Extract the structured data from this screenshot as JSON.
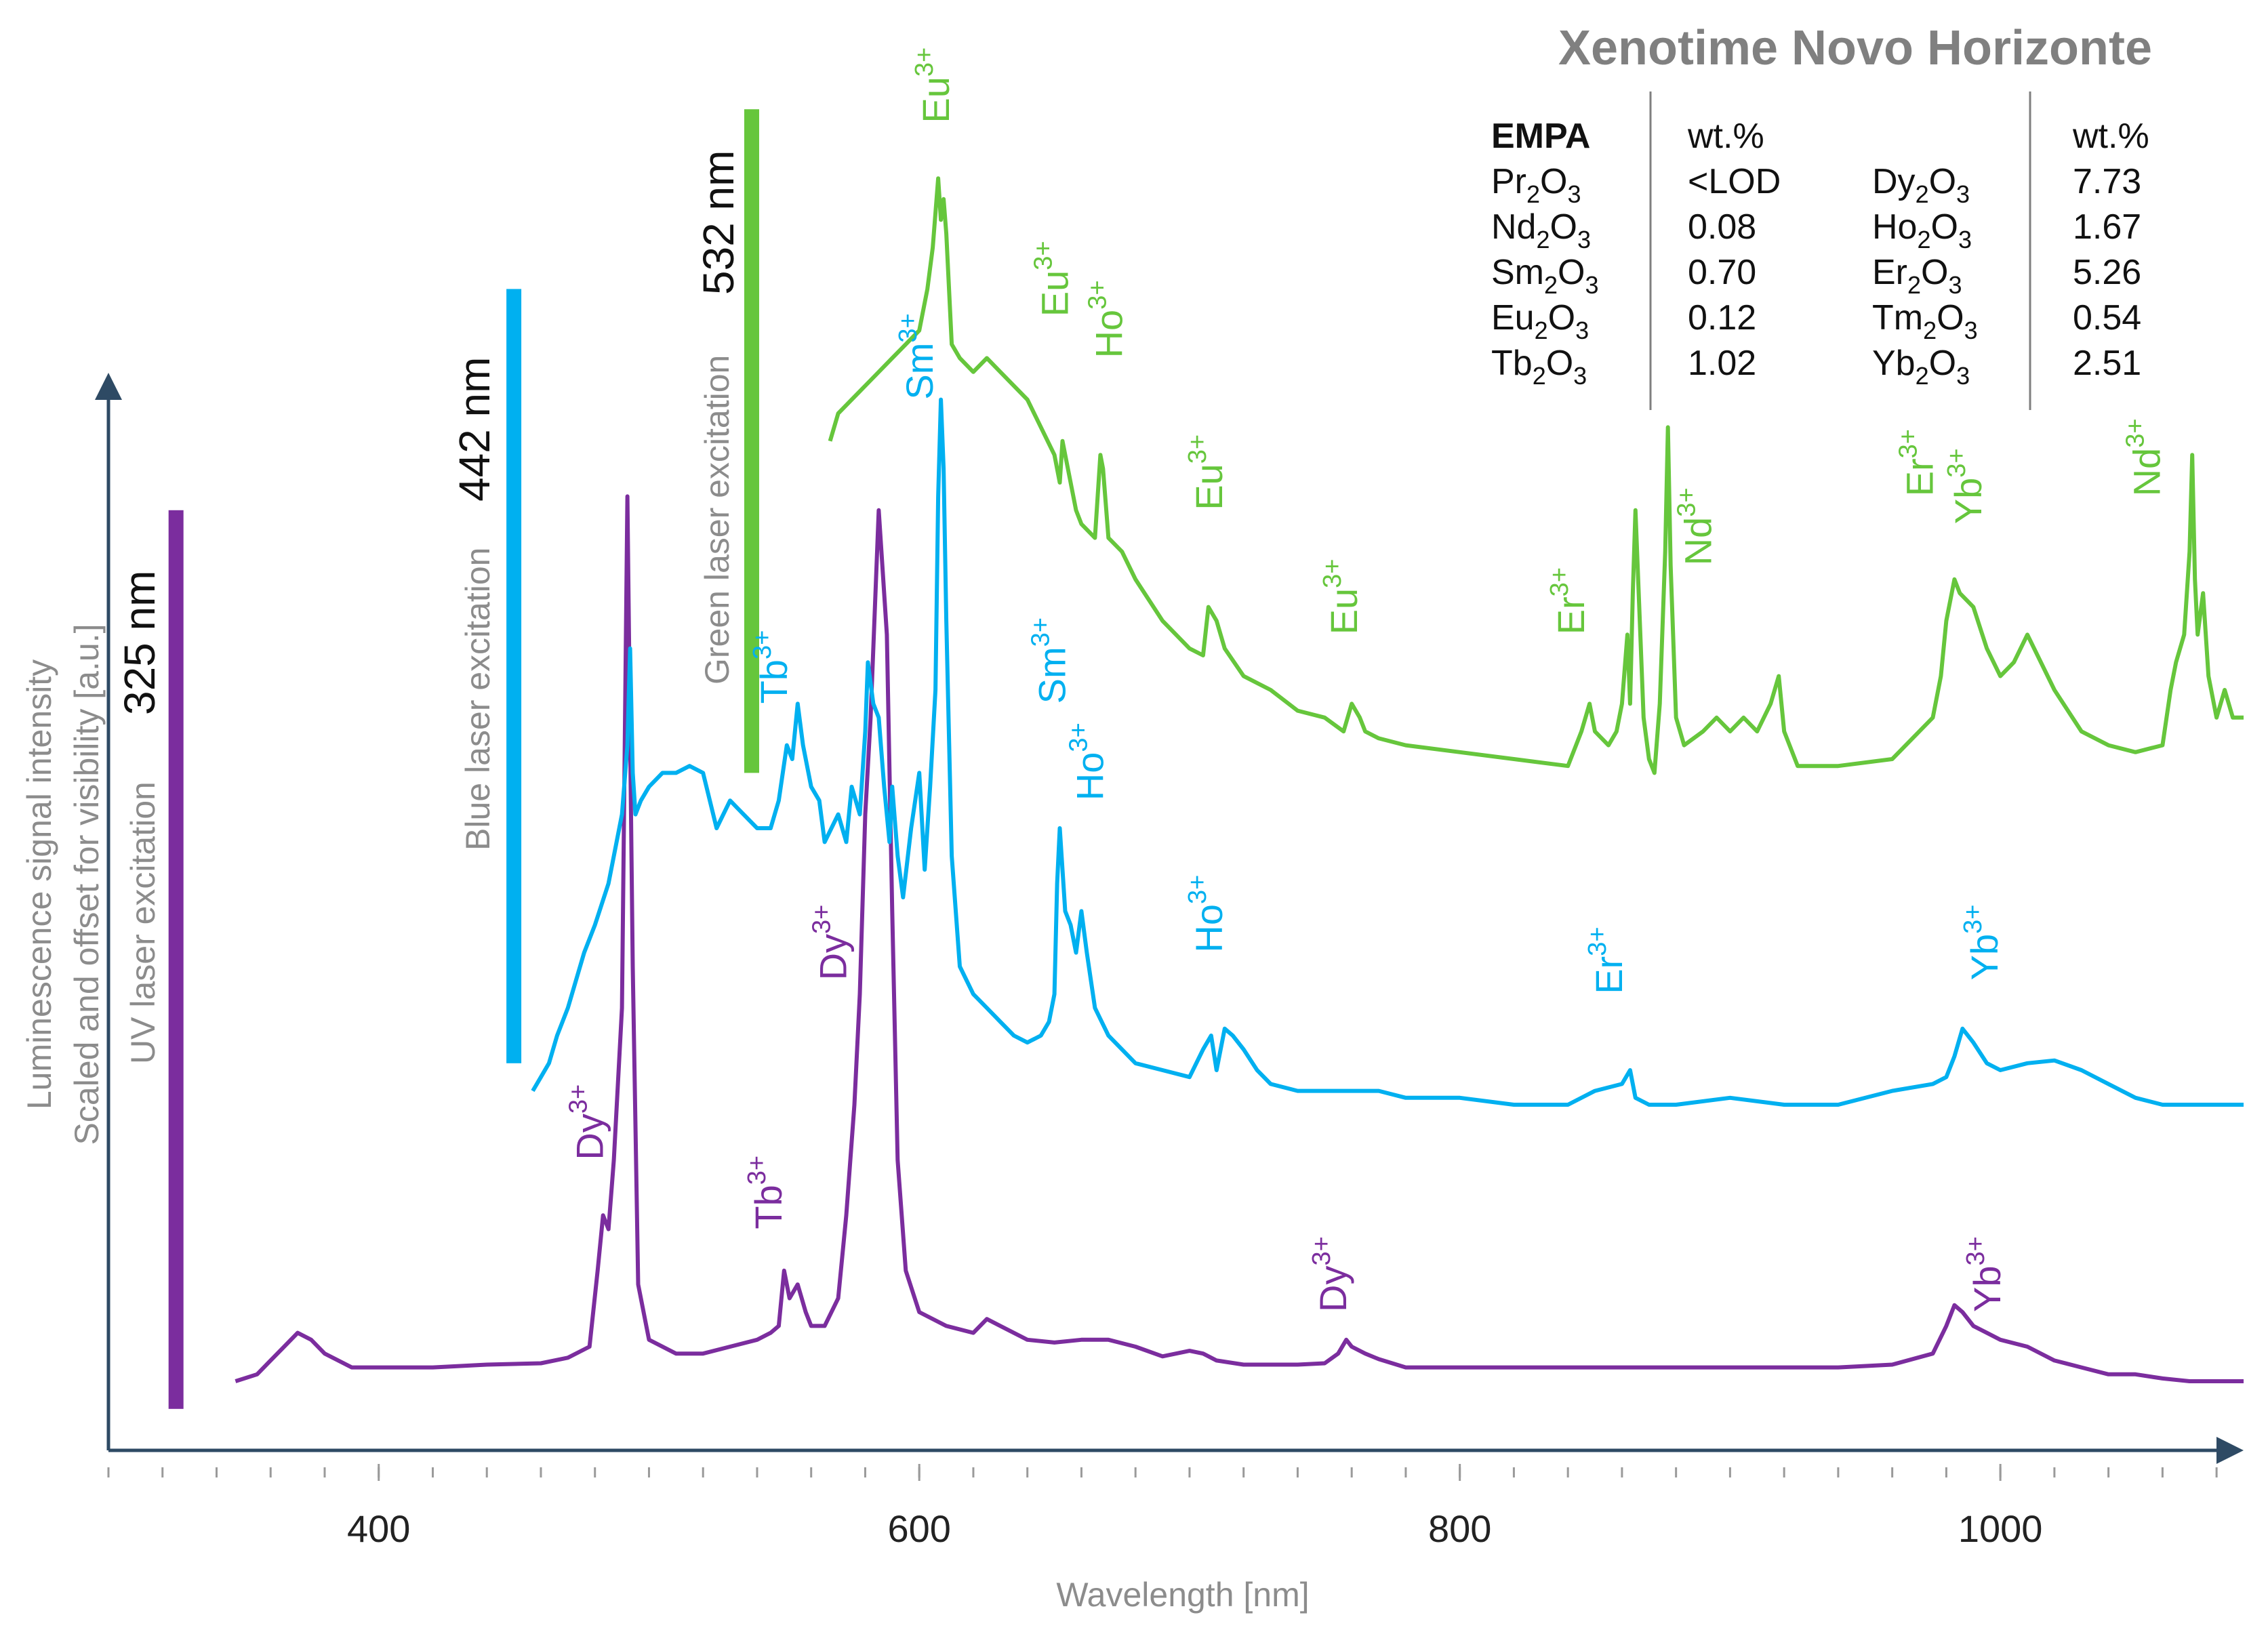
{
  "chart_data": {
    "type": "line",
    "title": "Xenotime Novo Horizonte",
    "xlabel": "Wavelength [nm]",
    "ylabel": [
      "Luminescence signal intensity",
      "Scaled and offset for visibility [a.u.]"
    ],
    "xlim": [
      300,
      1090
    ],
    "ylim": [
      0,
      10
    ],
    "x_ticks": [
      400,
      600,
      800,
      1000
    ],
    "x_tick_labels": [
      "400",
      "600",
      "800",
      "1000"
    ],
    "colors": {
      "uv": "#7b2d9e",
      "blue": "#00b0f0",
      "green": "#66c63c",
      "axis": "#2e4a64"
    },
    "excitations": [
      {
        "id": "uv",
        "label": "UV laser excitation",
        "nm_label": "325 nm",
        "wavelength": 325,
        "bar_range": [
          0.3,
          6.8
        ]
      },
      {
        "id": "blue",
        "label": "Blue laser excitation",
        "nm_label": "442 nm",
        "wavelength": 450,
        "bar_range": [
          2.8,
          8.4
        ]
      },
      {
        "id": "green",
        "label": "Green laser excitation",
        "nm_label": "532 nm",
        "wavelength": 538,
        "bar_range": [
          4.9,
          9.7
        ]
      }
    ],
    "series": [
      {
        "name": "UV laser excitation (325 nm)",
        "color": "#7b2d9e",
        "x": [
          347,
          355,
          360,
          365,
          370,
          375,
          380,
          390,
          400,
          420,
          440,
          460,
          470,
          478,
          481,
          483,
          485,
          487,
          490,
          492,
          494,
          496,
          500,
          510,
          520,
          530,
          540,
          545,
          548,
          550,
          552,
          555,
          558,
          560,
          565,
          570,
          573,
          576,
          578,
          580,
          582,
          585,
          588,
          590,
          592,
          595,
          600,
          610,
          620,
          625,
          630,
          640,
          650,
          660,
          670,
          680,
          690,
          700,
          705,
          710,
          720,
          740,
          750,
          755,
          758,
          760,
          765,
          770,
          780,
          800,
          820,
          840,
          860,
          880,
          900,
          920,
          940,
          960,
          975,
          980,
          983,
          986,
          990,
          995,
          1000,
          1010,
          1020,
          1030,
          1040,
          1050,
          1060,
          1070,
          1080,
          1090
        ],
        "y": [
          0.5,
          0.55,
          0.65,
          0.75,
          0.85,
          0.8,
          0.7,
          0.6,
          0.6,
          0.6,
          0.62,
          0.63,
          0.67,
          0.75,
          1.3,
          1.7,
          1.6,
          2.1,
          3.2,
          6.9,
          3.5,
          1.2,
          0.8,
          0.7,
          0.7,
          0.75,
          0.8,
          0.85,
          0.9,
          1.3,
          1.1,
          1.2,
          1.0,
          0.9,
          0.9,
          1.1,
          1.7,
          2.5,
          3.3,
          4.6,
          5.3,
          6.8,
          5.9,
          3.9,
          2.1,
          1.3,
          1.0,
          0.9,
          0.85,
          0.95,
          0.9,
          0.8,
          0.78,
          0.8,
          0.8,
          0.75,
          0.68,
          0.72,
          0.7,
          0.65,
          0.62,
          0.62,
          0.63,
          0.7,
          0.8,
          0.75,
          0.7,
          0.66,
          0.6,
          0.6,
          0.6,
          0.6,
          0.6,
          0.6,
          0.6,
          0.6,
          0.6,
          0.62,
          0.7,
          0.9,
          1.05,
          1.0,
          0.9,
          0.85,
          0.8,
          0.75,
          0.65,
          0.6,
          0.55,
          0.55,
          0.52,
          0.5,
          0.5,
          0.5
        ]
      },
      {
        "name": "Blue laser excitation (442 nm)",
        "color": "#00b0f0",
        "x": [
          457,
          460,
          463,
          466,
          470,
          473,
          476,
          480,
          485,
          490,
          492,
          493,
          494,
          495,
          497,
          500,
          505,
          510,
          515,
          520,
          525,
          530,
          535,
          540,
          545,
          548,
          551,
          553,
          555,
          557,
          560,
          563,
          565,
          570,
          573,
          575,
          578,
          580,
          581,
          583,
          585,
          587,
          589,
          590,
          592,
          594,
          597,
          600,
          602,
          604,
          606,
          607,
          608,
          609,
          610,
          612,
          615,
          620,
          625,
          630,
          635,
          640,
          645,
          648,
          650,
          651,
          652,
          654,
          656,
          658,
          660,
          662,
          665,
          670,
          680,
          690,
          700,
          705,
          708,
          710,
          713,
          716,
          720,
          725,
          730,
          740,
          750,
          760,
          770,
          780,
          800,
          820,
          840,
          850,
          860,
          863,
          865,
          870,
          880,
          900,
          920,
          940,
          960,
          975,
          980,
          983,
          986,
          990,
          995,
          1000,
          1010,
          1020,
          1030,
          1040,
          1050,
          1060,
          1070,
          1080,
          1090
        ],
        "y": [
          2.6,
          2.7,
          2.8,
          3.0,
          3.2,
          3.4,
          3.6,
          3.8,
          4.1,
          4.6,
          5.1,
          5.8,
          4.9,
          4.6,
          4.7,
          4.8,
          4.9,
          4.9,
          4.95,
          4.9,
          4.5,
          4.7,
          4.6,
          4.5,
          4.5,
          4.7,
          5.1,
          5.0,
          5.4,
          5.1,
          4.8,
          4.7,
          4.4,
          4.6,
          4.4,
          4.8,
          4.6,
          5.2,
          5.7,
          5.4,
          5.3,
          4.8,
          4.4,
          4.8,
          4.3,
          4.0,
          4.5,
          4.9,
          4.2,
          4.8,
          5.5,
          6.9,
          7.6,
          7.1,
          6.0,
          4.3,
          3.5,
          3.3,
          3.2,
          3.1,
          3.0,
          2.95,
          3.0,
          3.1,
          3.3,
          4.1,
          4.5,
          3.9,
          3.8,
          3.6,
          3.9,
          3.6,
          3.2,
          3.0,
          2.8,
          2.75,
          2.7,
          2.9,
          3.0,
          2.75,
          3.05,
          3.0,
          2.9,
          2.75,
          2.65,
          2.6,
          2.6,
          2.6,
          2.6,
          2.55,
          2.55,
          2.5,
          2.5,
          2.6,
          2.65,
          2.75,
          2.55,
          2.5,
          2.5,
          2.55,
          2.5,
          2.5,
          2.6,
          2.65,
          2.7,
          2.85,
          3.05,
          2.95,
          2.8,
          2.75,
          2.8,
          2.82,
          2.75,
          2.65,
          2.55,
          2.5,
          2.5,
          2.5,
          2.5
        ]
      },
      {
        "name": "Green laser excitation (532 nm)",
        "color": "#66c63c",
        "x": [
          567,
          570,
          575,
          580,
          585,
          590,
          595,
          600,
          603,
          605,
          607,
          608,
          609,
          610,
          612,
          615,
          620,
          625,
          630,
          640,
          650,
          652,
          653,
          655,
          658,
          660,
          665,
          667,
          668,
          670,
          675,
          680,
          690,
          700,
          705,
          707,
          710,
          713,
          720,
          730,
          740,
          750,
          757,
          760,
          763,
          765,
          770,
          780,
          800,
          820,
          840,
          845,
          848,
          850,
          855,
          858,
          860,
          862,
          863,
          864,
          865,
          868,
          870,
          872,
          874,
          876,
          877,
          878,
          880,
          883,
          890,
          895,
          900,
          905,
          910,
          915,
          918,
          920,
          925,
          940,
          960,
          975,
          978,
          980,
          983,
          985,
          990,
          995,
          1000,
          1005,
          1010,
          1020,
          1030,
          1040,
          1050,
          1060,
          1063,
          1065,
          1068,
          1070,
          1071,
          1072,
          1073,
          1075,
          1077,
          1080,
          1083,
          1086,
          1090
        ],
        "y": [
          7.3,
          7.5,
          7.6,
          7.7,
          7.8,
          7.9,
          8.0,
          8.1,
          8.4,
          8.7,
          9.2,
          8.9,
          9.05,
          8.8,
          8.0,
          7.9,
          7.8,
          7.9,
          7.8,
          7.6,
          7.2,
          7.0,
          7.3,
          7.1,
          6.8,
          6.7,
          6.6,
          7.2,
          7.1,
          6.6,
          6.5,
          6.3,
          6.0,
          5.8,
          5.75,
          6.1,
          6.0,
          5.8,
          5.6,
          5.5,
          5.35,
          5.3,
          5.2,
          5.4,
          5.3,
          5.2,
          5.15,
          5.1,
          5.05,
          5.0,
          4.95,
          5.2,
          5.4,
          5.2,
          5.1,
          5.2,
          5.4,
          5.9,
          5.4,
          6.2,
          6.8,
          5.3,
          5.0,
          4.9,
          5.4,
          6.5,
          7.4,
          6.4,
          5.3,
          5.1,
          5.2,
          5.3,
          5.2,
          5.3,
          5.2,
          5.4,
          5.6,
          5.2,
          4.95,
          4.95,
          5.0,
          5.3,
          5.6,
          6.0,
          6.3,
          6.2,
          6.1,
          5.8,
          5.6,
          5.7,
          5.9,
          5.5,
          5.2,
          5.1,
          5.05,
          5.1,
          5.5,
          5.7,
          5.9,
          6.5,
          7.2,
          6.3,
          5.9,
          6.2,
          5.6,
          5.3,
          5.5,
          5.3,
          5.3
        ]
      }
    ],
    "annotations": [
      {
        "series": "uv",
        "ion": "Dy",
        "charge": "3+",
        "wavelength": 483,
        "level": 2.1
      },
      {
        "series": "uv",
        "ion": "Tb",
        "charge": "3+",
        "wavelength": 549,
        "level": 1.6
      },
      {
        "series": "uv",
        "ion": "Dy",
        "charge": "3+",
        "wavelength": 573,
        "level": 3.4
      },
      {
        "series": "uv",
        "ion": "Dy",
        "charge": "3+",
        "wavelength": 758,
        "level": 1.0
      },
      {
        "series": "uv",
        "ion": "Yb",
        "charge": "3+",
        "wavelength": 1000,
        "level": 1.0
      },
      {
        "series": "blue",
        "ion": "Tb",
        "charge": "3+",
        "wavelength": 551,
        "level": 5.4
      },
      {
        "series": "blue",
        "ion": "Sm",
        "charge": "3+",
        "wavelength": 605,
        "level": 7.6
      },
      {
        "series": "blue",
        "ion": "Sm",
        "charge": "3+",
        "wavelength": 654,
        "level": 5.4
      },
      {
        "series": "blue",
        "ion": "Ho",
        "charge": "3+",
        "wavelength": 668,
        "level": 4.7
      },
      {
        "series": "blue",
        "ion": "Ho",
        "charge": "3+",
        "wavelength": 712,
        "level": 3.6
      },
      {
        "series": "blue",
        "ion": "Er",
        "charge": "3+",
        "wavelength": 860,
        "level": 3.3
      },
      {
        "series": "blue",
        "ion": "Yb",
        "charge": "3+",
        "wavelength": 999,
        "level": 3.4
      },
      {
        "series": "green",
        "ion": "Eu",
        "charge": "3+",
        "wavelength": 611,
        "level": 9.6
      },
      {
        "series": "green",
        "ion": "Eu",
        "charge": "3+",
        "wavelength": 655,
        "level": 8.2
      },
      {
        "series": "green",
        "ion": "Ho",
        "charge": "3+",
        "wavelength": 675,
        "level": 7.9
      },
      {
        "series": "green",
        "ion": "Eu",
        "charge": "3+",
        "wavelength": 712,
        "level": 6.8
      },
      {
        "series": "green",
        "ion": "Eu",
        "charge": "3+",
        "wavelength": 762,
        "level": 5.9
      },
      {
        "series": "green",
        "ion": "Er",
        "charge": "3+",
        "wavelength": 846,
        "level": 5.9
      },
      {
        "series": "green",
        "ion": "Nd",
        "charge": "3+",
        "wavelength": 893,
        "level": 6.4
      },
      {
        "series": "green",
        "ion": "Er",
        "charge": "3+",
        "wavelength": 975,
        "level": 6.9
      },
      {
        "series": "green",
        "ion": "Yb",
        "charge": "3+",
        "wavelength": 993,
        "level": 6.7
      },
      {
        "series": "green",
        "ion": "Nd",
        "charge": "3+",
        "wavelength": 1059,
        "level": 6.9
      }
    ],
    "empa_table": {
      "header": {
        "label": "EMPA",
        "unit1": "wt.%",
        "unit2": "wt.%"
      },
      "left": [
        {
          "oxide": "Pr",
          "o1": "2",
          "o2": "3",
          "value": "<LOD"
        },
        {
          "oxide": "Nd",
          "o1": "2",
          "o2": "3",
          "value": "0.08"
        },
        {
          "oxide": "Sm",
          "o1": "2",
          "o2": "3",
          "value": "0.70"
        },
        {
          "oxide": "Eu",
          "o1": "2",
          "o2": "3",
          "value": "0.12"
        },
        {
          "oxide": "Tb",
          "o1": "2",
          "o2": "3",
          "value": "1.02"
        }
      ],
      "right": [
        {
          "oxide": "Dy",
          "o1": "2",
          "o2": "3",
          "value": "7.73"
        },
        {
          "oxide": "Ho",
          "o1": "2",
          "o2": "3",
          "value": "1.67"
        },
        {
          "oxide": "Er",
          "o1": "2",
          "o2": "3",
          "value": "5.26"
        },
        {
          "oxide": "Tm",
          "o1": "2",
          "o2": "3",
          "value": "0.54"
        },
        {
          "oxide": "Yb",
          "o1": "2",
          "o2": "3",
          "value": "2.51"
        }
      ]
    }
  }
}
